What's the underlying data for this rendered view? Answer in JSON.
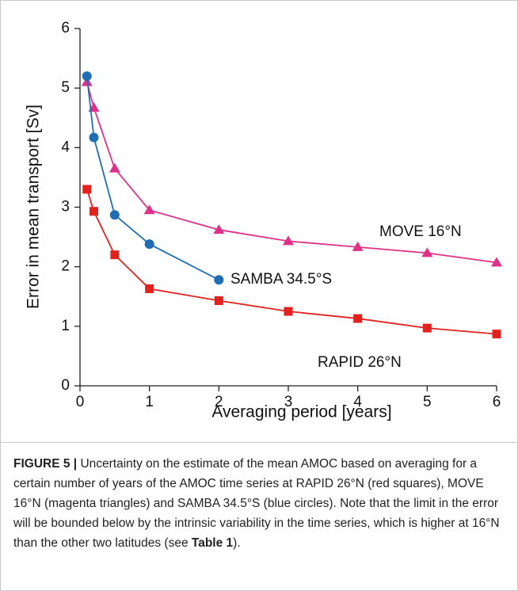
{
  "chart_data": {
    "type": "line",
    "x_label": "Averaging period [years]",
    "y_label": "Error in mean transport [Sv]",
    "xlim": [
      0,
      6
    ],
    "xticks": [
      0,
      1,
      2,
      3,
      4,
      5,
      6
    ],
    "ylim": [
      0,
      6
    ],
    "yticks": [
      0,
      1,
      2,
      3,
      4,
      5,
      6
    ],
    "series": [
      {
        "name": "MOVE 16°N",
        "color": "#e0318a",
        "marker": "triangle",
        "x": [
          0.1,
          0.2,
          0.5,
          1,
          2,
          3,
          4,
          5,
          6
        ],
        "values": [
          5.1,
          4.67,
          3.65,
          2.95,
          2.62,
          2.43,
          2.33,
          2.23,
          2.07
        ]
      },
      {
        "name": "SAMBA 34.5°S",
        "color": "#1f6db3",
        "marker": "circle",
        "x": [
          0.1,
          0.2,
          0.5,
          1,
          2
        ],
        "values": [
          5.2,
          4.17,
          2.87,
          2.38,
          1.78
        ]
      },
      {
        "name": "RAPID 26°N",
        "color": "#e2221e",
        "marker": "square",
        "x": [
          0.1,
          0.2,
          0.5,
          1,
          2,
          3,
          4,
          5,
          6
        ],
        "values": [
          3.3,
          2.93,
          2.2,
          1.63,
          1.43,
          1.25,
          1.13,
          0.97,
          0.87
        ]
      }
    ]
  },
  "caption": {
    "label": "FIGURE 5 |",
    "body": [
      "Uncertainty on the estimate of the mean AMOC based on averaging for a certain number of years of the AMOC time series at RAPID 26°N (red squares), MOVE 16°N (magenta triangles) and SAMBA 34.5°S (blue circles). Note that the limit in the error will be bounded below by the intrinsic variability in the time series, which is higher at 16°N than the other two latitudes (see ",
      "Table 1",
      ")."
    ]
  }
}
